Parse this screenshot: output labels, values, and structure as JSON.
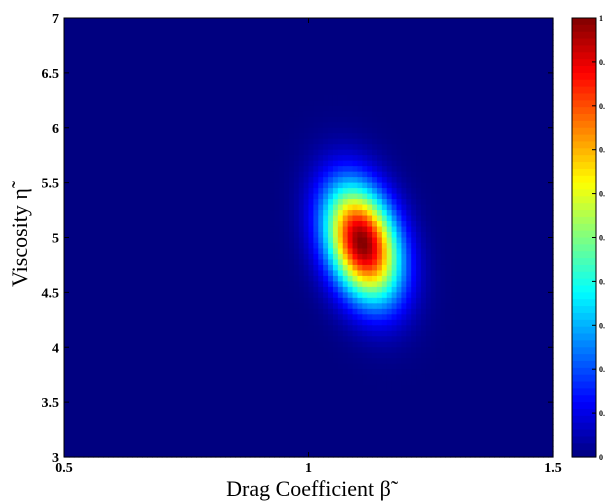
{
  "chart_data": {
    "type": "heatmap",
    "title": "",
    "xlabel": "Drag Coefficient β̃",
    "ylabel": "Viscosity η̃",
    "xlim": [
      0.5,
      1.5
    ],
    "ylim": [
      3,
      7
    ],
    "x_ticks": [
      "0.5",
      "1",
      "1.5"
    ],
    "y_ticks": [
      "3",
      "3.5",
      "4",
      "4.5",
      "5",
      "5.5",
      "6",
      "6.5",
      "7"
    ],
    "colormap": "jet",
    "color_range": [
      0,
      1
    ],
    "colorbar_ticks": [
      "0",
      "0.",
      "0.",
      "0.",
      "0.",
      "0.",
      "0.",
      "0.",
      "0.",
      "0.",
      "1"
    ],
    "peak": {
      "beta": 1.11,
      "eta": 4.95,
      "value": 1.0
    },
    "spread": {
      "sigma_beta": 0.052,
      "sigma_eta": 0.36,
      "correlation": -0.3
    },
    "grid": false,
    "legend": "colorbar right"
  }
}
